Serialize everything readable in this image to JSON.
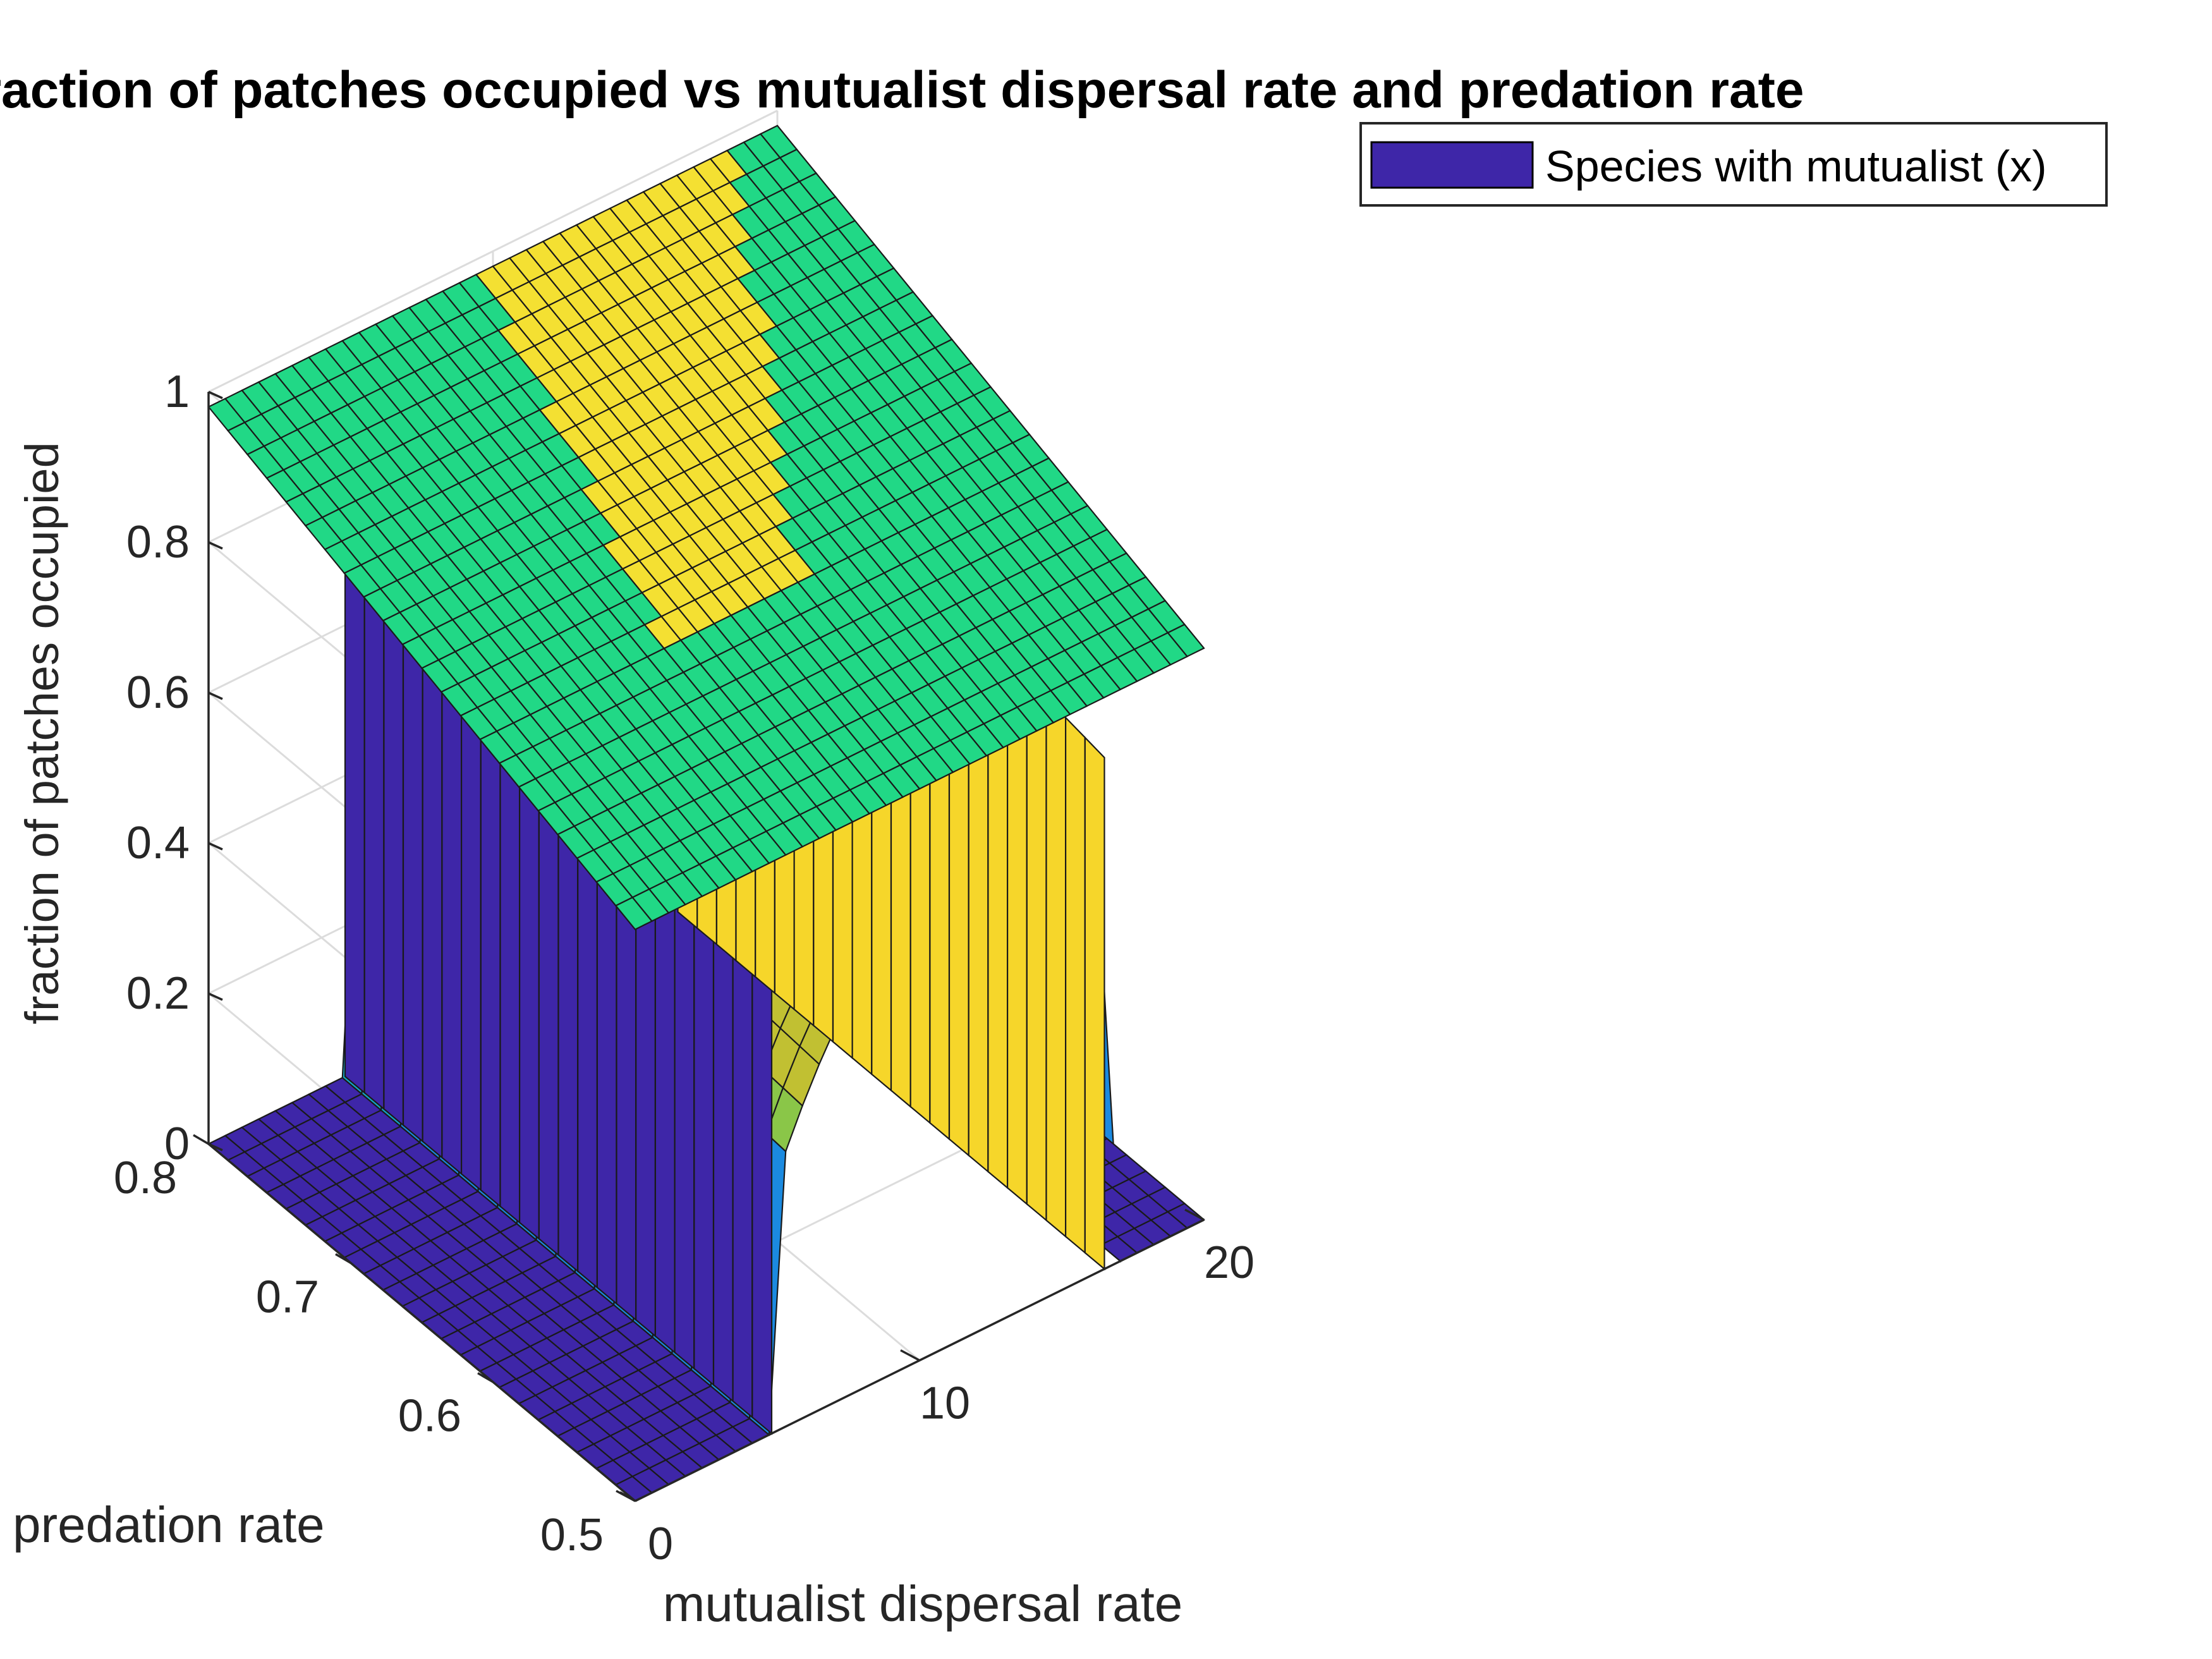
{
  "chart_data": {
    "type": "surface",
    "title": "Fraction of patches occupied vs mutualist dispersal rate and predation rate",
    "xlabel": "mutualist dispersal rate",
    "ylabel": "predation rate",
    "zlabel": "fraction of patches occupied",
    "xlim": [
      0,
      20
    ],
    "ylim": [
      0.5,
      0.8
    ],
    "zlim": [
      0,
      1
    ],
    "x_ticks": [
      "0",
      "10",
      "20"
    ],
    "y_ticks": [
      "0.5",
      "0.6",
      "0.7",
      "0.8"
    ],
    "z_ticks": [
      "0",
      "0.2",
      "0.4",
      "0.6",
      "0.8",
      "1"
    ],
    "grid": true,
    "legend_position": "top-right",
    "colormap": "parula",
    "series": [
      {
        "name": "Species with mutualist (x)",
        "color": "#3e26a8",
        "surfaces": [
          {
            "part": "high-occupancy plateau",
            "x_range": [
              0,
              20
            ],
            "y_range": [
              0.5,
              0.8
            ],
            "z_at_corners": {
              "x0_y0.8": 0.98,
              "x20_y0.8": 0.98,
              "x0_y0.5": 0.76,
              "x20_y0.5": 0.76
            },
            "peak_z": 1.0,
            "color": "#21d886"
          },
          {
            "part": "collapse region",
            "description_values": {
              "x_start": 4.8,
              "x_end": 16.5,
              "z_floor": 0
            }
          }
        ]
      }
    ]
  }
}
